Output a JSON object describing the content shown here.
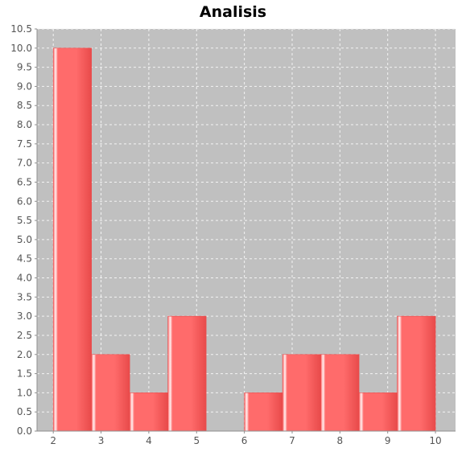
{
  "chart_data": {
    "type": "bar",
    "title": "Analisis",
    "xlabel": "",
    "ylabel": "",
    "xlim": [
      1.66,
      10.42
    ],
    "ylim": [
      0,
      10.5
    ],
    "x_ticks": [
      "2",
      "3",
      "4",
      "5",
      "6",
      "7",
      "8",
      "9",
      "10"
    ],
    "y_ticks": [
      "0.0",
      "0.5",
      "1.0",
      "1.5",
      "2.0",
      "2.5",
      "3.0",
      "3.5",
      "4.0",
      "4.5",
      "5.0",
      "5.5",
      "6.0",
      "6.5",
      "7.0",
      "7.5",
      "8.0",
      "8.5",
      "9.0",
      "9.5",
      "10.0",
      "10.5"
    ],
    "bins": [
      {
        "start": 2.0,
        "end": 2.8,
        "value": 10
      },
      {
        "start": 2.8,
        "end": 3.6,
        "value": 2
      },
      {
        "start": 3.6,
        "end": 4.4,
        "value": 1
      },
      {
        "start": 4.4,
        "end": 5.2,
        "value": 3
      },
      {
        "start": 5.2,
        "end": 6.0,
        "value": 0
      },
      {
        "start": 6.0,
        "end": 6.8,
        "value": 1
      },
      {
        "start": 6.8,
        "end": 7.6,
        "value": 2
      },
      {
        "start": 7.6,
        "end": 8.4,
        "value": 2
      },
      {
        "start": 8.4,
        "end": 9.2,
        "value": 1
      },
      {
        "start": 9.2,
        "end": 10.0,
        "value": 3
      }
    ],
    "grid": true,
    "colors": {
      "plot_background": "#c0c0c0",
      "bar": "#ff6b6b",
      "bar_dark": "#e84a4a",
      "bar_highlight": "#fff2f2",
      "grid": "#f3f3f3",
      "axis": "#8f8f8f",
      "tick_text": "#555555",
      "title": "#000000"
    }
  }
}
